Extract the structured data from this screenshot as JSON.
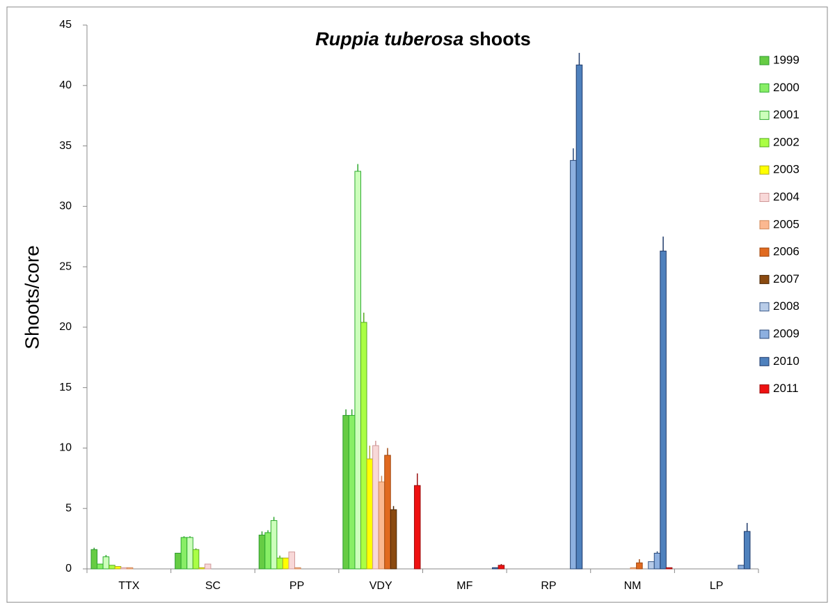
{
  "chart_data": {
    "type": "bar",
    "title_parts": [
      "Ruppia tuberosa",
      "shoots"
    ],
    "y_label": "Shoots/core",
    "categories": [
      "TTX",
      "SC",
      "PP",
      "VDY",
      "MF",
      "RP",
      "NM",
      "LP"
    ],
    "ylim": [
      0,
      45
    ],
    "yticks": [
      0,
      5,
      10,
      15,
      20,
      25,
      30,
      35,
      40,
      45
    ],
    "grid": false,
    "legend": "right",
    "series": [
      {
        "name": "1999",
        "color": "#66cc44",
        "edgecolor": "#2e9a2e",
        "values": [
          1.6,
          1.3,
          2.8,
          12.7,
          0,
          0,
          0,
          0
        ],
        "errors": [
          0.15,
          null,
          0.3,
          0.5,
          null,
          null,
          null,
          null
        ]
      },
      {
        "name": "2000",
        "color": "#88ee66",
        "edgecolor": "#2eaa2e",
        "values": [
          0.4,
          2.6,
          3.0,
          12.7,
          0,
          0,
          0,
          0
        ],
        "errors": [
          null,
          0.1,
          0.2,
          0.5,
          null,
          null,
          null,
          null
        ]
      },
      {
        "name": "2001",
        "color": "#ccffbb",
        "edgecolor": "#2eaa2e",
        "values": [
          1.0,
          2.6,
          4.0,
          32.9,
          0,
          0,
          0,
          0
        ],
        "errors": [
          0.15,
          0.1,
          0.3,
          0.6,
          null,
          null,
          null,
          null
        ]
      },
      {
        "name": "2002",
        "color": "#aaff44",
        "edgecolor": "#55aa22",
        "values": [
          0.3,
          1.6,
          0.9,
          20.4,
          0,
          0,
          0,
          0
        ],
        "errors": [
          null,
          0.1,
          0.2,
          0.8,
          null,
          null,
          null,
          null
        ]
      },
      {
        "name": "2003",
        "color": "#ffff00",
        "edgecolor": "#aaaa22",
        "values": [
          0.2,
          0.1,
          0.9,
          9.1,
          0,
          0,
          0,
          0
        ],
        "errors": [
          null,
          null,
          null,
          1.1,
          null,
          null,
          null,
          null
        ]
      },
      {
        "name": "2004",
        "color": "#f8d8d8",
        "edgecolor": "#d09898",
        "values": [
          0.1,
          0.4,
          1.4,
          10.2,
          0,
          0,
          0,
          0
        ],
        "errors": [
          null,
          null,
          null,
          0.4,
          null,
          null,
          null,
          null
        ]
      },
      {
        "name": "2005",
        "color": "#fbb890",
        "edgecolor": "#d08858",
        "values": [
          0.1,
          0,
          0.1,
          7.2,
          0,
          0,
          0.1,
          0
        ],
        "errors": [
          null,
          null,
          null,
          0.5,
          null,
          null,
          null,
          null
        ]
      },
      {
        "name": "2006",
        "color": "#e06a20",
        "edgecolor": "#a04810",
        "values": [
          0,
          0,
          0,
          9.4,
          0,
          0,
          0.5,
          0
        ],
        "errors": [
          null,
          null,
          null,
          0.6,
          null,
          null,
          0.3,
          null
        ]
      },
      {
        "name": "2007",
        "color": "#8a4a10",
        "edgecolor": "#4a2808",
        "values": [
          0,
          0,
          0,
          4.9,
          0,
          0,
          0,
          0
        ],
        "errors": [
          null,
          null,
          null,
          0.3,
          null,
          null,
          null,
          null
        ]
      },
      {
        "name": "2008",
        "color": "#b8cce8",
        "edgecolor": "#3a5a8a",
        "values": [
          0,
          0,
          0,
          0,
          0,
          0,
          0.6,
          0
        ],
        "errors": [
          null,
          null,
          null,
          null,
          null,
          null,
          null,
          null
        ]
      },
      {
        "name": "2009",
        "color": "#8db0e0",
        "edgecolor": "#2a4a7a",
        "values": [
          0,
          0,
          0,
          0,
          0,
          33.8,
          1.3,
          0.3
        ],
        "errors": [
          null,
          null,
          null,
          null,
          null,
          1.0,
          0.15,
          null
        ]
      },
      {
        "name": "2010",
        "color": "#4f81bd",
        "edgecolor": "#1f3a6a",
        "values": [
          0,
          0,
          0,
          0,
          0.1,
          41.7,
          26.3,
          3.1
        ],
        "errors": [
          null,
          null,
          null,
          null,
          null,
          1.0,
          1.2,
          0.7
        ]
      },
      {
        "name": "2011",
        "color": "#ee1111",
        "edgecolor": "#991111",
        "values": [
          0,
          0,
          0,
          6.9,
          0.3,
          0,
          0.1,
          0
        ],
        "errors": [
          null,
          null,
          null,
          1.0,
          0.1,
          null,
          null,
          null
        ]
      }
    ]
  }
}
